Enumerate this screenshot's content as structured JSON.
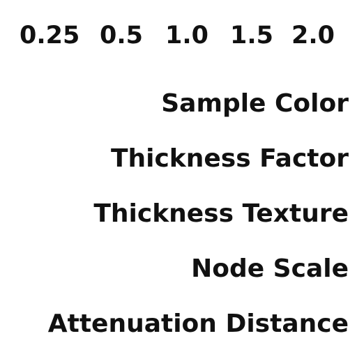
{
  "scale_values": [
    "0.25",
    "0.5",
    "1.0",
    "1.5",
    "2.0"
  ],
  "labels": [
    "Sample Color",
    "Thickness Factor",
    "Thickness Texture",
    "Node Scale",
    "Attenuation Distance"
  ]
}
